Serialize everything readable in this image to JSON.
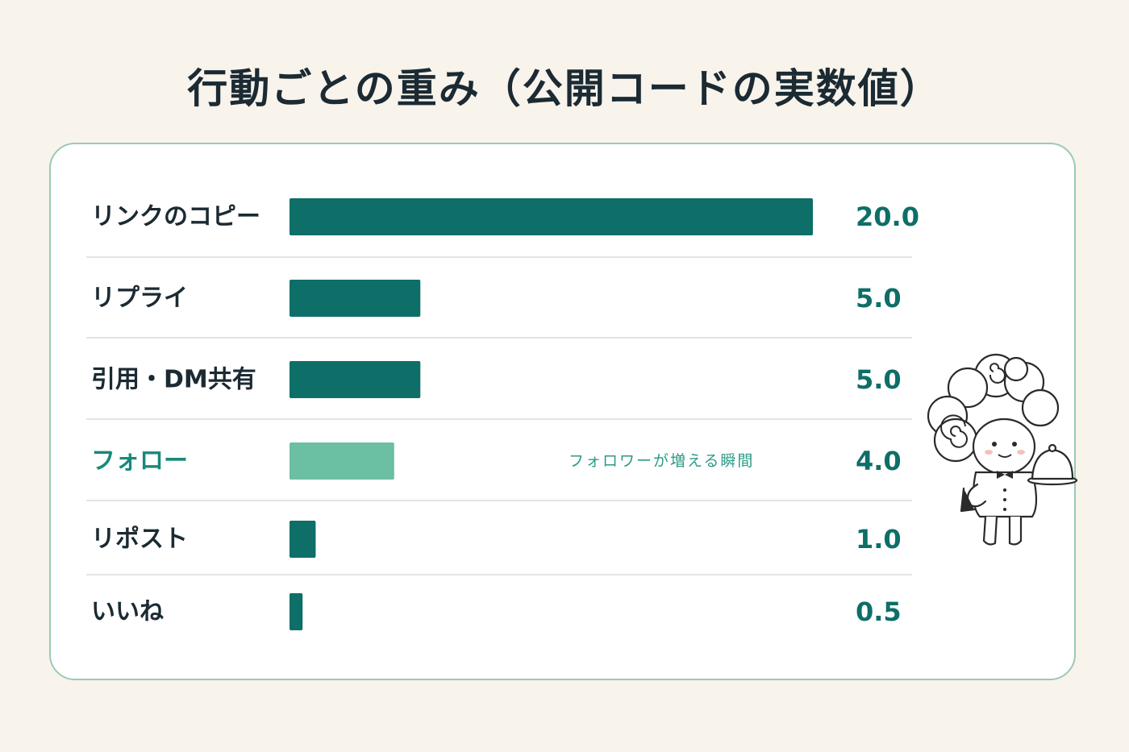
{
  "chart_data": {
    "type": "bar",
    "orientation": "horizontal",
    "title": "行動ごとの重み（公開コードの実数値）",
    "categories": [
      "リンクのコピー",
      "リプライ",
      "引用・DM共有",
      "フォロー",
      "リポスト",
      "いいね"
    ],
    "values": [
      20.0,
      5.0,
      5.0,
      4.0,
      1.0,
      0.5
    ],
    "value_labels": [
      "20.0",
      "5.0",
      "5.0",
      "4.0",
      "1.0",
      "0.5"
    ],
    "highlight_index": 3,
    "annotation": {
      "category": "フォロー",
      "text": "フォロワーが増える瞬間"
    },
    "xlim": [
      0,
      20
    ],
    "grid": false,
    "colors": {
      "bar": "#0e6e68",
      "highlight_bar": "#6bbfa3",
      "highlight_text": "#17897a",
      "divider": "#dcdcdc"
    }
  },
  "illustration": {
    "icon": "waiter-mascot-icon"
  }
}
